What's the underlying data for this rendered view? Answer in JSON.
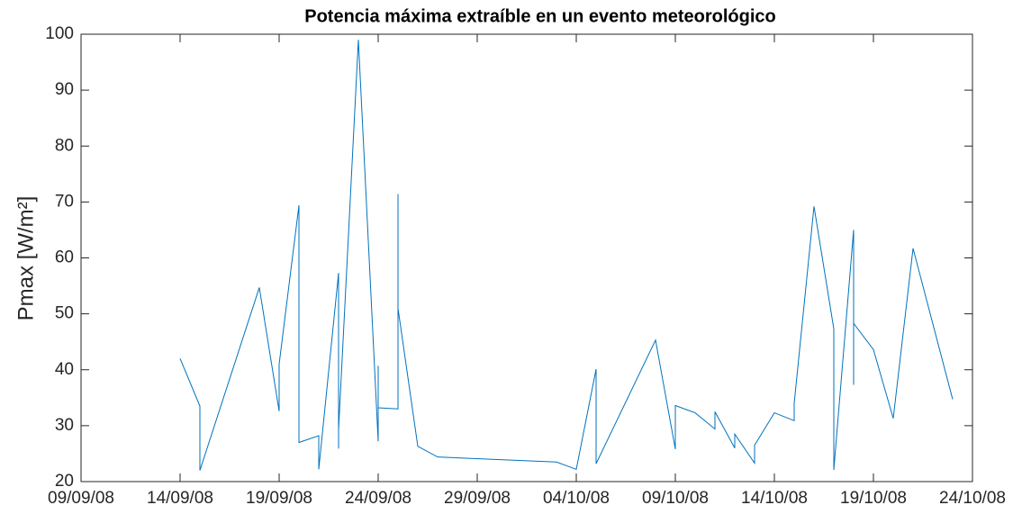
{
  "chart_data": {
    "type": "line",
    "title": "Potencia máxima extraíble en un evento meteorológico",
    "y_label": "Pmax [W/m²]",
    "x": [
      "2008-09-14",
      "2008-09-15",
      "2008-09-15",
      "2008-09-18",
      "2008-09-19",
      "2008-09-19",
      "2008-09-19",
      "2008-09-20",
      "2008-09-20",
      "2008-09-21",
      "2008-09-21",
      "2008-09-21",
      "2008-09-22",
      "2008-09-22",
      "2008-09-22",
      "2008-09-22",
      "2008-09-22",
      "2008-09-23",
      "2008-09-24",
      "2008-09-24",
      "2008-09-24",
      "2008-09-25",
      "2008-09-25",
      "2008-09-25",
      "2008-09-25",
      "2008-09-26",
      "2008-09-27",
      "2008-10-03",
      "2008-10-04",
      "2008-10-05",
      "2008-10-05",
      "2008-10-08",
      "2008-10-09",
      "2008-10-09",
      "2008-10-10",
      "2008-10-11",
      "2008-10-11",
      "2008-10-12",
      "2008-10-12",
      "2008-10-13",
      "2008-10-13",
      "2008-10-14",
      "2008-10-15",
      "2008-10-15",
      "2008-10-16",
      "2008-10-17",
      "2008-10-17",
      "2008-10-18",
      "2008-10-18",
      "2008-10-18",
      "2008-10-19",
      "2008-10-20",
      "2008-10-21",
      "2008-10-23"
    ],
    "series": [
      {
        "color": "#0072bd",
        "values": [
          42,
          33.5,
          22,
          54.7,
          32.6,
          32.7,
          41,
          69.4,
          27,
          28.2,
          24.2,
          22.2,
          57.3,
          26,
          25.9,
          52.3,
          29.3,
          99,
          27.2,
          40.7,
          33.2,
          33,
          36,
          71.4,
          51,
          26.3,
          24.4,
          23.5,
          22.2,
          40.1,
          23.2,
          45.3,
          25.8,
          33.6,
          32.3,
          29.4,
          32.5,
          26,
          28.5,
          23.3,
          26.5,
          32.3,
          30.9,
          34,
          69.2,
          47.3,
          22.1,
          65,
          37.3,
          48.3,
          43.6,
          31.3,
          61.7,
          34.7
        ]
      }
    ],
    "xlim": [
      "2008-09-09",
      "2008-10-24"
    ],
    "xticks": [
      {
        "value": "2008-09-09",
        "label": "09/09/08"
      },
      {
        "value": "2008-09-14",
        "label": "14/09/08"
      },
      {
        "value": "2008-09-19",
        "label": "19/09/08"
      },
      {
        "value": "2008-09-24",
        "label": "24/09/08"
      },
      {
        "value": "2008-09-29",
        "label": "29/09/08"
      },
      {
        "value": "2008-10-04",
        "label": "04/10/08"
      },
      {
        "value": "2008-10-09",
        "label": "09/10/08"
      },
      {
        "value": "2008-10-14",
        "label": "14/10/08"
      },
      {
        "value": "2008-10-19",
        "label": "19/10/08"
      },
      {
        "value": "2008-10-24",
        "label": "24/10/08"
      }
    ],
    "ylim": [
      20,
      100
    ],
    "yticks": [
      20,
      30,
      40,
      50,
      60,
      70,
      80,
      90,
      100
    ],
    "grid": false
  }
}
